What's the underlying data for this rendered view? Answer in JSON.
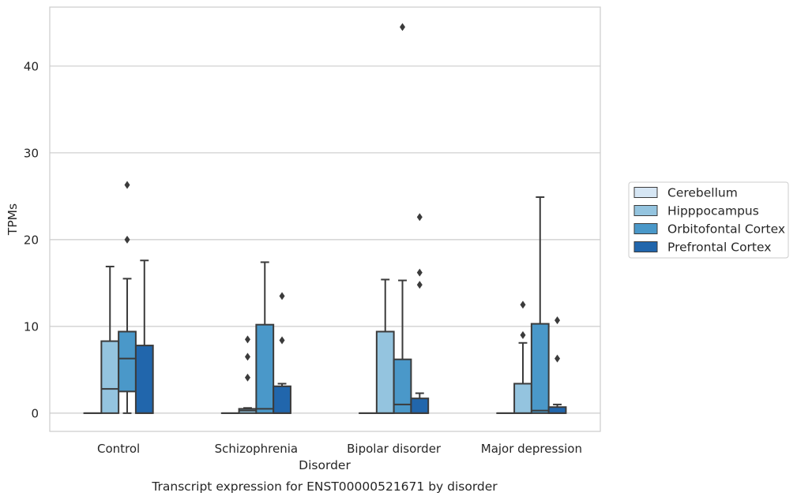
{
  "chart_data": {
    "type": "box",
    "title": "",
    "caption": "Transcript expression for ENST00000521671 by disorder",
    "xlabel": "Disorder",
    "ylabel": "TPMs",
    "ylim": [
      -2.1,
      46.8
    ],
    "yticks": [
      0,
      10,
      20,
      30,
      40
    ],
    "grid": "horizontal",
    "legend_position": "right",
    "categories": [
      "Control",
      "Schizophrenia",
      "Bipolar disorder",
      "Major depression"
    ],
    "series": [
      {
        "name": "Cerebellum",
        "color": "#d6e6f4",
        "boxes": [
          {
            "whislo": 0,
            "q1": 0,
            "med": 0,
            "q3": 0,
            "whishi": 0,
            "fliers": []
          },
          {
            "whislo": 0,
            "q1": 0,
            "med": 0,
            "q3": 0,
            "whishi": 0,
            "fliers": []
          },
          {
            "whislo": 0,
            "q1": 0,
            "med": 0,
            "q3": 0,
            "whishi": 0,
            "fliers": []
          },
          {
            "whislo": 0,
            "q1": 0,
            "med": 0,
            "q3": 0,
            "whishi": 0,
            "fliers": []
          }
        ]
      },
      {
        "name": "Hipppocampus",
        "color": "#94c4df",
        "boxes": [
          {
            "whislo": 0,
            "q1": 0,
            "med": 2.8,
            "q3": 8.3,
            "whishi": 16.9,
            "fliers": []
          },
          {
            "whislo": 0,
            "q1": 0,
            "med": 0.3,
            "q3": 0.5,
            "whishi": 0.6,
            "fliers": [
              4.1,
              6.5,
              8.5
            ]
          },
          {
            "whislo": 0,
            "q1": 0,
            "med": 0,
            "q3": 9.4,
            "whishi": 15.4,
            "fliers": []
          },
          {
            "whislo": 0,
            "q1": 0,
            "med": 0,
            "q3": 3.4,
            "whishi": 8.1,
            "fliers": [
              9.0,
              12.5
            ]
          }
        ]
      },
      {
        "name": "Orbitofontal Cortex",
        "color": "#4a98c9",
        "boxes": [
          {
            "whislo": 0,
            "q1": 2.5,
            "med": 6.3,
            "q3": 9.4,
            "whishi": 15.5,
            "fliers": [
              20.0,
              26.3
            ]
          },
          {
            "whislo": 0,
            "q1": 0,
            "med": 0.5,
            "q3": 10.2,
            "whishi": 17.4,
            "fliers": []
          },
          {
            "whislo": 0,
            "q1": 0,
            "med": 1.0,
            "q3": 6.2,
            "whishi": 15.3,
            "fliers": [
              44.5
            ]
          },
          {
            "whislo": 0,
            "q1": 0,
            "med": 0.3,
            "q3": 10.3,
            "whishi": 24.9,
            "fliers": []
          }
        ]
      },
      {
        "name": "Prefrontal Cortex",
        "color": "#2166ac",
        "boxes": [
          {
            "whislo": 0,
            "q1": 0,
            "med": 0,
            "q3": 7.8,
            "whishi": 17.6,
            "fliers": []
          },
          {
            "whislo": 0,
            "q1": 0,
            "med": 0,
            "q3": 3.1,
            "whishi": 3.4,
            "fliers": [
              8.4,
              13.5
            ]
          },
          {
            "whislo": 0,
            "q1": 0,
            "med": 0,
            "q3": 1.7,
            "whishi": 2.3,
            "fliers": [
              14.8,
              16.2,
              22.6
            ]
          },
          {
            "whislo": 0,
            "q1": 0,
            "med": 0,
            "q3": 0.7,
            "whishi": 1.0,
            "fliers": [
              6.3,
              10.7
            ]
          }
        ]
      }
    ]
  }
}
